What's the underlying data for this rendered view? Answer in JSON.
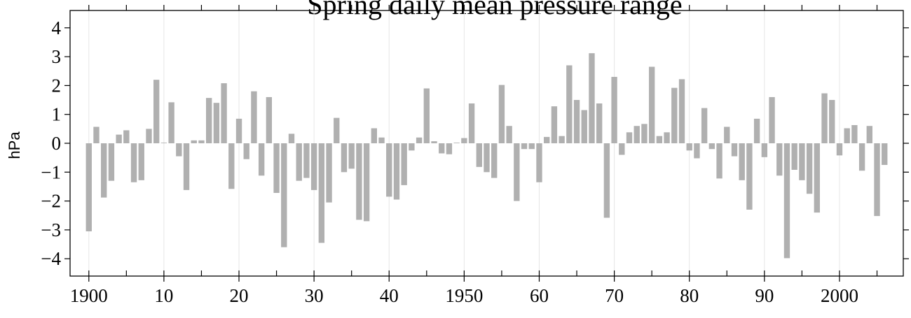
{
  "chart_data": {
    "type": "bar",
    "title": "Spring daily mean pressure range",
    "ylabel": "hPa",
    "xlabel": "",
    "ylim": [
      -4.6,
      4.6
    ],
    "xlim": [
      1897.5,
      2008.5
    ],
    "x_ticks": [
      1900,
      1910,
      1920,
      1930,
      1940,
      1950,
      1960,
      1970,
      1980,
      1990,
      2000
    ],
    "x_tick_labels": [
      "1900",
      "10",
      "20",
      "30",
      "40",
      "1950",
      "60",
      "70",
      "80",
      "90",
      "2000"
    ],
    "y_ticks": [
      4,
      3,
      2,
      1,
      0,
      -1,
      -2,
      -3,
      -4
    ],
    "y_tick_labels": [
      "4",
      "3",
      "2",
      "1",
      "0",
      "−1",
      "−2",
      "−3",
      "−4"
    ],
    "grid": true,
    "bar_color": "#b0b0b0",
    "grid_color": "#e6e6e6",
    "x": [
      1900,
      1901,
      1902,
      1903,
      1904,
      1905,
      1906,
      1907,
      1908,
      1909,
      1910,
      1911,
      1912,
      1913,
      1914,
      1915,
      1916,
      1917,
      1918,
      1919,
      1920,
      1921,
      1922,
      1923,
      1924,
      1925,
      1926,
      1927,
      1928,
      1929,
      1930,
      1931,
      1932,
      1933,
      1934,
      1935,
      1936,
      1937,
      1938,
      1939,
      1940,
      1941,
      1942,
      1943,
      1944,
      1945,
      1946,
      1947,
      1948,
      1949,
      1950,
      1951,
      1952,
      1953,
      1954,
      1955,
      1956,
      1957,
      1958,
      1959,
      1960,
      1961,
      1962,
      1963,
      1964,
      1965,
      1966,
      1967,
      1968,
      1969,
      1970,
      1971,
      1972,
      1973,
      1974,
      1975,
      1976,
      1977,
      1978,
      1979,
      1980,
      1981,
      1982,
      1983,
      1984,
      1985,
      1986,
      1987,
      1988,
      1989,
      1990,
      1991,
      1992,
      1993,
      1994,
      1995,
      1996,
      1997,
      1998,
      1999,
      2000,
      2001,
      2002,
      2003,
      2004,
      2005,
      2006
    ],
    "values": [
      -3.05,
      0.57,
      -1.88,
      -1.3,
      0.3,
      0.45,
      -1.35,
      -1.28,
      0.5,
      2.2,
      0.02,
      1.42,
      -0.45,
      -1.62,
      0.1,
      0.1,
      1.57,
      1.4,
      2.08,
      -1.58,
      0.85,
      -0.55,
      1.8,
      -1.12,
      1.6,
      -1.72,
      -3.6,
      0.33,
      -1.3,
      -1.2,
      -1.62,
      -3.45,
      -2.05,
      0.88,
      -1.0,
      -0.88,
      -2.65,
      -2.7,
      0.52,
      0.2,
      -1.85,
      -1.95,
      -1.45,
      -0.25,
      0.2,
      1.9,
      0.07,
      -0.35,
      -0.38,
      0.02,
      0.18,
      1.38,
      -0.82,
      -1.0,
      -1.2,
      2.02,
      0.6,
      -2.0,
      -0.2,
      -0.2,
      -1.35,
      0.22,
      1.28,
      0.25,
      2.7,
      1.5,
      1.15,
      3.12,
      1.38,
      -2.58,
      2.3,
      -0.4,
      0.38,
      0.6,
      0.67,
      2.65,
      0.25,
      0.38,
      1.92,
      2.22,
      -0.25,
      -0.52,
      1.22,
      -0.2,
      -1.22,
      0.57,
      -0.45,
      -1.28,
      -2.3,
      0.85,
      -0.48,
      1.6,
      -1.12,
      -3.98,
      -0.92,
      -1.28,
      -1.75,
      -2.4,
      1.73,
      1.5,
      -0.42,
      0.52,
      0.63,
      -0.95,
      0.6,
      -2.52,
      -0.75
    ]
  }
}
